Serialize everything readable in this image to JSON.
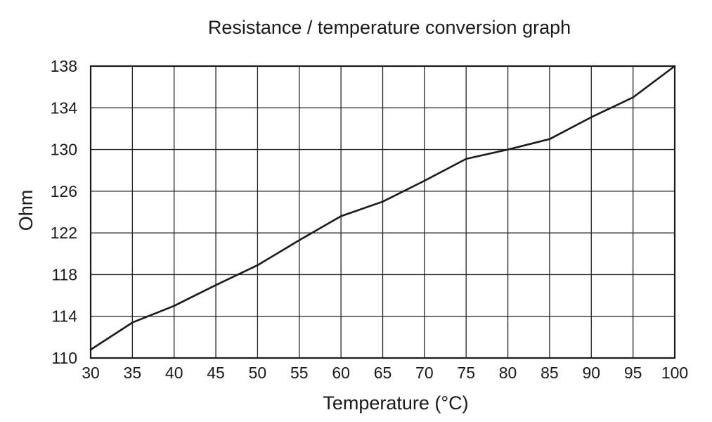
{
  "chart_data": {
    "type": "line",
    "title": "Resistance / temperature conversion graph",
    "xlabel": "Temperature (°C)",
    "ylabel": "Ohm",
    "xlim": [
      30,
      100
    ],
    "ylim": [
      110,
      138
    ],
    "x_ticks": [
      30,
      35,
      40,
      45,
      50,
      55,
      60,
      65,
      70,
      75,
      80,
      85,
      90,
      95,
      100
    ],
    "y_ticks": [
      110,
      114,
      118,
      122,
      126,
      130,
      134,
      138
    ],
    "grid": true,
    "series": [
      {
        "x": [
          30,
          35,
          40,
          45,
          50,
          55,
          60,
          65,
          70,
          75,
          80,
          85,
          90,
          95,
          100
        ],
        "y": [
          110.8,
          113.4,
          115.0,
          117.0,
          118.9,
          121.3,
          123.6,
          125.0,
          127.0,
          129.1,
          130.0,
          131.0,
          133.1,
          135.0,
          138.0
        ]
      }
    ],
    "line_color": "#1a1a1a",
    "grid_color": "#222222"
  }
}
